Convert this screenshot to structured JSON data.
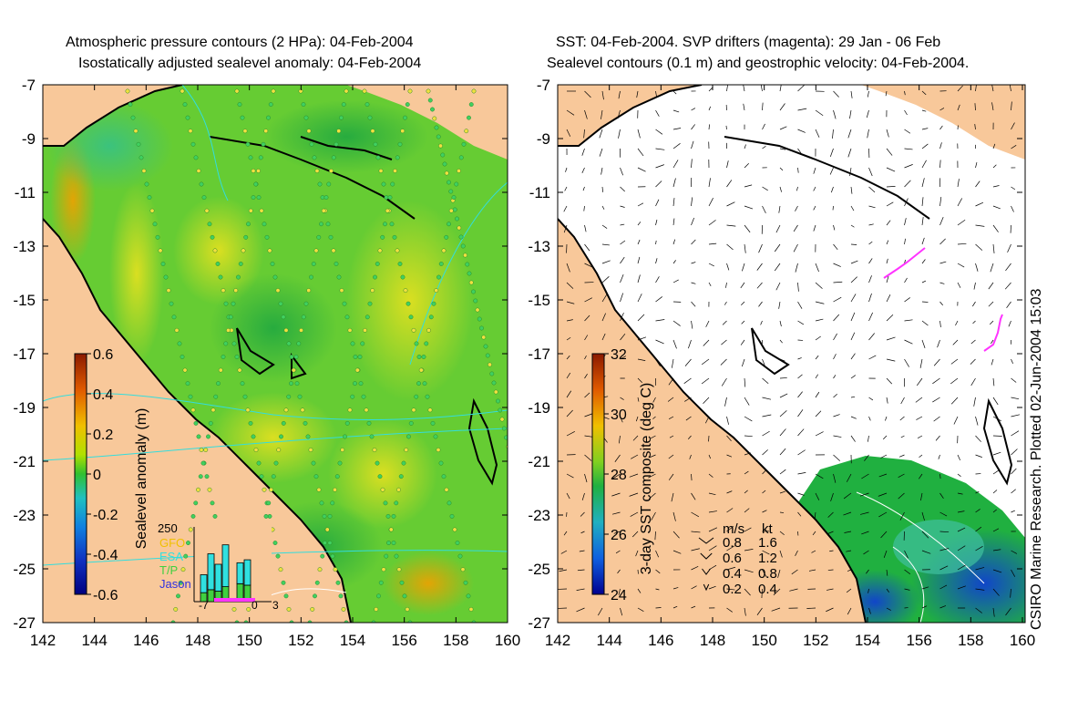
{
  "left_panel": {
    "title_line1": "Atmospheric pressure contours (2 HPa): 04-Feb-2004",
    "title_line2": "Isostatically adjusted sealevel anomaly: 04-Feb-2004",
    "colorbar": {
      "label": "Sealevel anomaly (m)",
      "ticks": [
        "0.6",
        "0.4",
        "0.2",
        "0",
        "-0.2",
        "-0.4",
        "-0.6"
      ]
    },
    "inset": {
      "ymax_label": "250",
      "xticks": [
        "-7",
        "0",
        "3"
      ],
      "legend": [
        {
          "label": "GFO",
          "color": "#f0c000"
        },
        {
          "label": "ESA",
          "color": "#30e0e0"
        },
        {
          "label": "T/P",
          "color": "#40d040"
        },
        {
          "label": "Jason",
          "color": "#3030e0"
        }
      ],
      "bars": [
        {
          "x": -7,
          "cyan": 60,
          "green": 30
        },
        {
          "x": -6,
          "cyan": 120,
          "green": 40
        },
        {
          "x": -5,
          "cyan": 90,
          "green": 35
        },
        {
          "x": -4,
          "cyan": 140,
          "green": 50
        },
        {
          "x": -2,
          "cyan": 70,
          "green": 60
        },
        {
          "x": -1,
          "cyan": 85,
          "green": 55
        }
      ]
    }
  },
  "right_panel": {
    "title_line1": "SST: 04-Feb-2004. SVP drifters (magenta): 29 Jan - 06 Feb",
    "title_line2": "Sealevel contours (0.1 m) and geostrophic velocity: 04-Feb-2004.",
    "colorbar": {
      "label": "3-day SST composite (deg C)",
      "ticks": [
        "32",
        "30",
        "28",
        "26",
        "24"
      ]
    },
    "speed_legend": {
      "header_ms": "m/s",
      "header_kt": "kt",
      "rows": [
        {
          "ms": "0.8",
          "kt": "1.6"
        },
        {
          "ms": "0.6",
          "kt": "1.2"
        },
        {
          "ms": "0.4",
          "kt": "0.8"
        },
        {
          "ms": "0.2",
          "kt": "0.4"
        }
      ]
    },
    "credit": "CSIRO Marine Research. Plotted 02-Jun-2004 15:03"
  },
  "axes": {
    "lon_ticks": [
      "142",
      "144",
      "146",
      "148",
      "150",
      "152",
      "154",
      "156",
      "158",
      "160"
    ],
    "lat_ticks": [
      "-7",
      "-9",
      "-11",
      "-13",
      "-15",
      "-17",
      "-19",
      "-21",
      "-23",
      "-25",
      "-27"
    ],
    "lon_range": [
      142,
      160
    ],
    "lat_range": [
      -27,
      -7
    ]
  },
  "colors": {
    "land": "#f8c89a",
    "ocean_anomaly_base": "#66cc33",
    "ocean_white": "#ffffff",
    "drifter": "#ff33ff",
    "pressure_contour": "#33dddd"
  }
}
